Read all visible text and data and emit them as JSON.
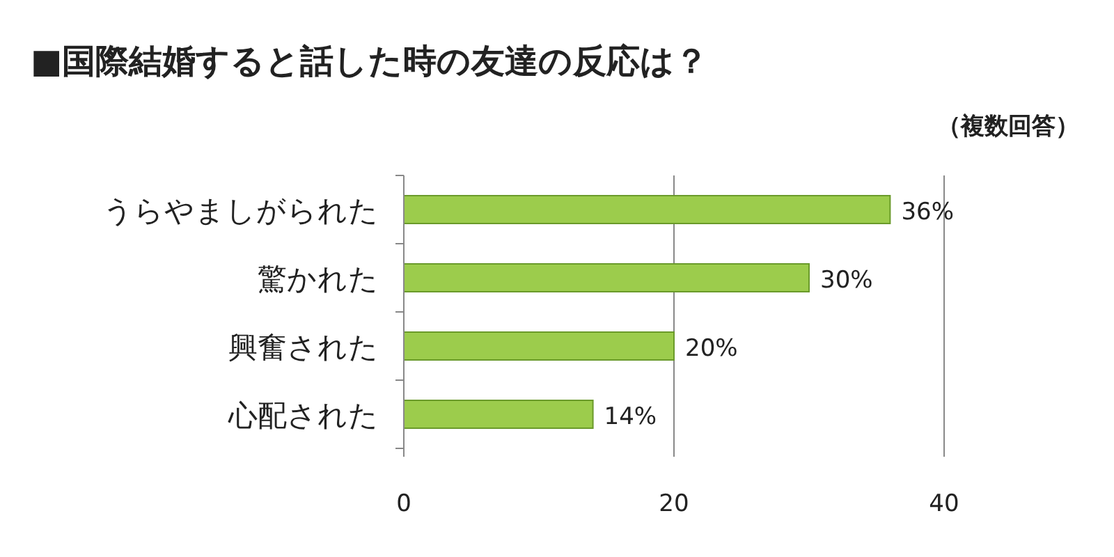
{
  "chart_data": {
    "type": "bar",
    "orientation": "horizontal",
    "title": "■国際結婚すると話した時の友達の反応は？",
    "subtitle": "（複数回答）",
    "categories": [
      "うらやましがられた",
      "驚かれた",
      "興奮された",
      "心配された"
    ],
    "values": [
      36,
      30,
      20,
      14
    ],
    "value_labels": [
      "36%",
      "30%",
      "20%",
      "14%"
    ],
    "color": "#9ccc4c",
    "xlim": [
      0,
      40
    ],
    "xticks": [
      0,
      20,
      40
    ],
    "grid": "x"
  }
}
